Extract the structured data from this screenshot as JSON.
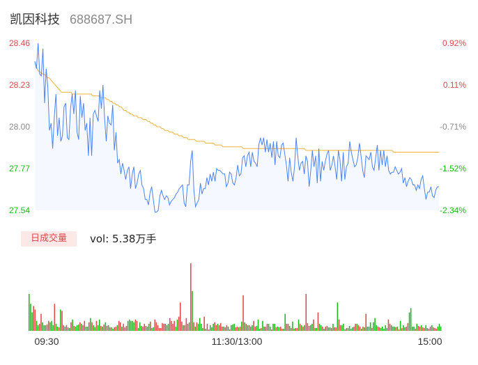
{
  "header": {
    "name": "凯因科技",
    "code": "688687.SH"
  },
  "colors": {
    "up": "#e0474c",
    "down": "#1bb81b",
    "price_line": "#4a82f7",
    "avg_line": "#f0b03a",
    "area_fill": "#f5f8fe",
    "neutral": "#8a8a8a"
  },
  "volume_panel": {
    "label": "日成交量",
    "vol_text": "vol: 5.38万手"
  },
  "chart_data": [
    {
      "type": "line",
      "ylim": [
        27.54,
        28.46
      ],
      "y_ticks_left": [
        "28.46",
        "28.23",
        "28.00",
        "27.77",
        "27.54"
      ],
      "y_ticks_right": [
        "0.92%",
        "0.11%",
        "-0.71%",
        "-1.52%",
        "-2.34%"
      ],
      "x_ticks": [
        "09:30",
        "11:30/13:00",
        "15:00"
      ],
      "series": [
        {
          "values": [
            28.36,
            28.32,
            28.46,
            28.29,
            28.28,
            28.43,
            28.13,
            28.32,
            28.22,
            27.98,
            28.02,
            27.88,
            28.06,
            28.18,
            27.95,
            28.05,
            27.92,
            27.95,
            28.11,
            28.13,
            27.94,
            27.93,
            28.1,
            28.18,
            28.07,
            28.2,
            27.97,
            27.93,
            28.17,
            28.05,
            28.13,
            27.98,
            28.02,
            27.84,
            28.05,
            27.84,
            28.07,
            28.09,
            28.06,
            28.03,
            28.2,
            28.1,
            28.23,
            28.04,
            27.92,
            28.06,
            28.02,
            28.01,
            28.12,
            27.87,
            27.97,
            27.8,
            27.82,
            27.74,
            27.8,
            27.76,
            27.71,
            27.76,
            27.78,
            27.66,
            27.74,
            27.78,
            27.66,
            27.69,
            27.74,
            27.76,
            27.68,
            27.66,
            27.6,
            27.6,
            27.57,
            27.64,
            27.67,
            27.6,
            27.53,
            27.53,
            27.54,
            27.62,
            27.65,
            27.62,
            27.6,
            27.62,
            27.61,
            27.57,
            27.59,
            27.6,
            27.61,
            27.63,
            27.64,
            27.66,
            27.67,
            27.68,
            27.58,
            27.56,
            27.68,
            27.68,
            27.81,
            27.87,
            27.65,
            27.56,
            27.58,
            27.6,
            27.69,
            27.63,
            27.66,
            27.66,
            27.72,
            27.68,
            27.74,
            27.7,
            27.75,
            27.7,
            27.77,
            27.76,
            27.76,
            27.75,
            27.74,
            27.74,
            27.67,
            27.69,
            27.75,
            27.74,
            27.69,
            27.68,
            27.72,
            27.79,
            27.73,
            27.74,
            27.83,
            27.84,
            27.78,
            27.84,
            27.86,
            27.78,
            27.86,
            27.81,
            27.8,
            27.78,
            27.9,
            27.94,
            27.9,
            27.94,
            27.86,
            27.93,
            27.86,
            27.91,
            27.83,
            27.92,
            27.79,
            27.92,
            27.84,
            27.83,
            27.9,
            27.91,
            27.85,
            27.79,
            27.7,
            27.83,
            27.75,
            27.7,
            27.78,
            27.94,
            27.84,
            27.76,
            27.8,
            27.81,
            27.74,
            27.84,
            27.81,
            27.67,
            27.76,
            27.87,
            27.78,
            27.84,
            27.69,
            27.88,
            27.7,
            27.81,
            27.76,
            27.81,
            27.85,
            27.87,
            27.76,
            27.79,
            27.84,
            27.78,
            27.71,
            27.87,
            27.82,
            27.7,
            27.86,
            27.71,
            27.78,
            27.8,
            27.92,
            27.86,
            27.82,
            27.78,
            27.79,
            27.83,
            27.91,
            27.84,
            27.76,
            27.72,
            27.84,
            27.83,
            27.82,
            27.86,
            27.78,
            27.76,
            27.83,
            27.9,
            27.76,
            27.87,
            27.79,
            27.87,
            27.78,
            27.84,
            27.76,
            27.74,
            27.75,
            27.75,
            27.78,
            27.76,
            27.74,
            27.75,
            27.77,
            27.69,
            27.72,
            27.67,
            27.7,
            27.72,
            27.71,
            27.68,
            27.68,
            27.65,
            27.68,
            27.66,
            27.71,
            27.73,
            27.66,
            27.6,
            27.64,
            27.64,
            27.67,
            27.62,
            27.61,
            27.65,
            27.67,
            27.67
          ]
        },
        {
          "values": [
            28.36,
            28.33,
            28.31,
            28.3,
            28.3,
            28.29,
            28.29,
            28.28,
            28.27,
            28.27,
            28.26,
            28.25,
            28.24,
            28.23,
            28.22,
            28.21,
            28.2,
            28.19,
            28.19,
            28.19,
            28.19,
            28.19,
            28.19,
            28.19,
            28.18,
            28.18,
            28.18,
            28.18,
            28.18,
            28.18,
            28.18,
            28.18,
            28.18,
            28.18,
            28.18,
            28.18,
            28.18,
            28.17,
            28.17,
            28.17,
            28.17,
            28.17,
            28.16,
            28.16,
            28.16,
            28.16,
            28.15,
            28.15,
            28.14,
            28.14,
            28.13,
            28.13,
            28.12,
            28.12,
            28.11,
            28.11,
            28.1,
            28.09,
            28.09,
            28.08,
            28.08,
            28.07,
            28.07,
            28.06,
            28.06,
            28.06,
            28.05,
            28.05,
            28.05,
            28.04,
            28.04,
            28.04,
            28.03,
            28.03,
            28.02,
            28.02,
            28.01,
            28.01,
            28.0,
            28.0,
            28.0,
            27.99,
            27.99,
            27.98,
            27.98,
            27.98,
            27.97,
            27.97,
            27.97,
            27.96,
            27.96,
            27.96,
            27.95,
            27.95,
            27.95,
            27.94,
            27.94,
            27.94,
            27.93,
            27.93,
            27.93,
            27.93,
            27.93,
            27.92,
            27.92,
            27.92,
            27.92,
            27.92,
            27.92,
            27.91,
            27.91,
            27.91,
            27.91,
            27.91,
            27.91,
            27.9,
            27.9,
            27.9,
            27.9,
            27.9,
            27.89,
            27.89,
            27.89,
            27.89,
            27.89,
            27.89,
            27.89,
            27.89,
            27.89,
            27.89,
            27.89,
            27.89,
            27.89,
            27.88,
            27.88,
            27.88,
            27.88,
            27.88,
            27.88,
            27.88,
            27.88,
            27.88,
            27.88,
            27.88,
            27.88,
            27.88,
            27.88,
            27.88,
            27.88,
            27.88,
            27.88,
            27.88,
            27.88,
            27.88,
            27.88,
            27.88,
            27.88,
            27.88,
            27.88,
            27.88,
            27.88,
            27.88,
            27.88,
            27.88,
            27.88,
            27.88,
            27.88,
            27.88,
            27.88,
            27.88,
            27.88,
            27.88,
            27.88,
            27.87,
            27.87,
            27.87,
            27.87,
            27.87,
            27.87,
            27.87,
            27.87,
            27.87,
            27.87,
            27.87,
            27.87,
            27.87,
            27.87,
            27.87,
            27.87,
            27.87,
            27.87,
            27.87,
            27.87,
            27.87,
            27.87,
            27.87,
            27.87,
            27.87,
            27.87,
            27.87,
            27.87,
            27.87,
            27.87,
            27.87,
            27.87,
            27.87,
            27.87,
            27.87,
            27.87,
            27.87,
            27.87,
            27.87,
            27.87,
            27.87,
            27.87,
            27.87,
            27.87,
            27.87,
            27.87,
            27.87,
            27.87,
            27.87,
            27.87,
            27.87,
            27.87,
            27.87,
            27.87,
            27.87,
            27.87,
            27.86,
            27.86,
            27.86,
            27.86,
            27.86,
            27.86,
            27.86,
            27.86,
            27.86,
            27.86,
            27.86,
            27.86,
            27.86,
            27.86,
            27.86,
            27.86,
            27.86,
            27.86,
            27.86,
            27.86,
            27.86,
            27.86,
            27.86,
            27.86,
            27.86,
            27.86,
            27.86,
            27.86,
            27.86,
            27.86
          ]
        }
      ]
    },
    {
      "type": "bar",
      "volumes": [
        52,
        38,
        26,
        35,
        30,
        14,
        8,
        10,
        24,
        12,
        8,
        8,
        9,
        14,
        12,
        14,
        8,
        38,
        10,
        6,
        5,
        30,
        28,
        8,
        6,
        8,
        5,
        4,
        12,
        16,
        7,
        6,
        8,
        9,
        12,
        10,
        8,
        14,
        6,
        6,
        12,
        18,
        12,
        8,
        5,
        14,
        8,
        16,
        7,
        6,
        9,
        12,
        7,
        8,
        5,
        5,
        3,
        5,
        6,
        8,
        14,
        12,
        6,
        10,
        5,
        7,
        14,
        16,
        14,
        14,
        12,
        16,
        14,
        4,
        12,
        7,
        6,
        10,
        7,
        6,
        10,
        13,
        4,
        5,
        16,
        12,
        8,
        4,
        4,
        11,
        10,
        10,
        8,
        10,
        18,
        14,
        10,
        14,
        6,
        16,
        20,
        40,
        13,
        8,
        8,
        18,
        10,
        12,
        95,
        56,
        12,
        6,
        12,
        10,
        18,
        10,
        4,
        20,
        3,
        10,
        2,
        8,
        5,
        10,
        12,
        8,
        10,
        8,
        11,
        6,
        6,
        5,
        8,
        6,
        2,
        8,
        9,
        10,
        5,
        6,
        5,
        6,
        13,
        50,
        12,
        10,
        8,
        8,
        6,
        8,
        14,
        6,
        7,
        16,
        3,
        4,
        14,
        6,
        6,
        10,
        10,
        6,
        2,
        10,
        10,
        5,
        6,
        5,
        6,
        3,
        3,
        24,
        10,
        10,
        7,
        4,
        13,
        3,
        4,
        4,
        16,
        10,
        8,
        6,
        8,
        52,
        11,
        7,
        8,
        10,
        16,
        4,
        4,
        26,
        10,
        8,
        6,
        3,
        6,
        7,
        5,
        5,
        4,
        10,
        5,
        5,
        40,
        16,
        8,
        8,
        10,
        2,
        4,
        4,
        7,
        3,
        5,
        6,
        10,
        10,
        8,
        6,
        3,
        6,
        5,
        24,
        6,
        6,
        12,
        4,
        12,
        18,
        8,
        6,
        5,
        4,
        6,
        3,
        8,
        4,
        16,
        10,
        8,
        6,
        6,
        5,
        6,
        2,
        14,
        4,
        8,
        5,
        6,
        11,
        26,
        32,
        6,
        6,
        3,
        10,
        7,
        6,
        8,
        5,
        4,
        8,
        4,
        3,
        6,
        8,
        5,
        4,
        3,
        6,
        10,
        6
      ],
      "colors": [
        "down",
        "down",
        "down",
        "up",
        "up",
        "down",
        "down",
        "up",
        "up",
        "down",
        "down",
        "down",
        "up",
        "up",
        "down",
        "down",
        "down",
        "up",
        "down",
        "down",
        "up",
        "down",
        "up",
        "up",
        "down",
        "up",
        "down",
        "down",
        "up",
        "down",
        "up",
        "down",
        "down",
        "down",
        "up",
        "down",
        "up",
        "up",
        "down",
        "down",
        "up",
        "down",
        "up",
        "down",
        "down",
        "up",
        "down",
        "down",
        "up",
        "down",
        "up",
        "down",
        "up",
        "down",
        "up",
        "down",
        "down",
        "up",
        "up",
        "down",
        "up",
        "up",
        "down",
        "up",
        "up",
        "up",
        "down",
        "down",
        "down",
        "down",
        "down",
        "up",
        "up",
        "down",
        "down",
        "down",
        "up",
        "up",
        "up",
        "down",
        "down",
        "up",
        "down",
        "down",
        "up",
        "up",
        "up",
        "up",
        "up",
        "up",
        "up",
        "up",
        "down",
        "down",
        "up",
        "up",
        "up",
        "up",
        "down",
        "down",
        "up",
        "up",
        "up",
        "down",
        "up",
        "up",
        "up",
        "down",
        "up",
        "down",
        "up",
        "down",
        "up",
        "down",
        "down",
        "down",
        "down",
        "up",
        "down",
        "up",
        "up",
        "down",
        "down",
        "down",
        "up",
        "up",
        "down",
        "up",
        "up",
        "up",
        "down",
        "up",
        "up",
        "down",
        "up",
        "down",
        "down",
        "down",
        "up",
        "up",
        "down",
        "up",
        "down",
        "up",
        "down",
        "up",
        "down",
        "up",
        "down",
        "down",
        "up",
        "up",
        "down",
        "down",
        "down",
        "up",
        "down",
        "down",
        "up",
        "up",
        "down",
        "down",
        "up",
        "down",
        "down",
        "up",
        "down",
        "down",
        "up",
        "up",
        "down",
        "down",
        "up",
        "up",
        "down",
        "up",
        "down",
        "down",
        "up",
        "up",
        "down",
        "up",
        "down",
        "up",
        "down",
        "up",
        "up",
        "up",
        "down",
        "down",
        "up",
        "down",
        "down",
        "up",
        "down",
        "down",
        "up",
        "down",
        "up",
        "up",
        "down",
        "down",
        "up",
        "down",
        "up",
        "up",
        "down",
        "up",
        "up",
        "down",
        "down",
        "down",
        "up",
        "down",
        "down",
        "down",
        "down",
        "up",
        "up",
        "down",
        "up",
        "up",
        "down",
        "up",
        "down",
        "up",
        "down",
        "down",
        "down",
        "up",
        "down",
        "down",
        "down",
        "up",
        "up",
        "down",
        "down",
        "down",
        "down",
        "down",
        "up",
        "up",
        "down",
        "down",
        "down",
        "up",
        "down",
        "up",
        "down",
        "up",
        "down",
        "down",
        "up",
        "up",
        "down",
        "down",
        "down",
        "down",
        "up",
        "down",
        "up",
        "up",
        "down",
        "up",
        "up",
        "down",
        "down",
        "up",
        "up",
        "down",
        "up",
        "up",
        "up"
      ]
    }
  ]
}
